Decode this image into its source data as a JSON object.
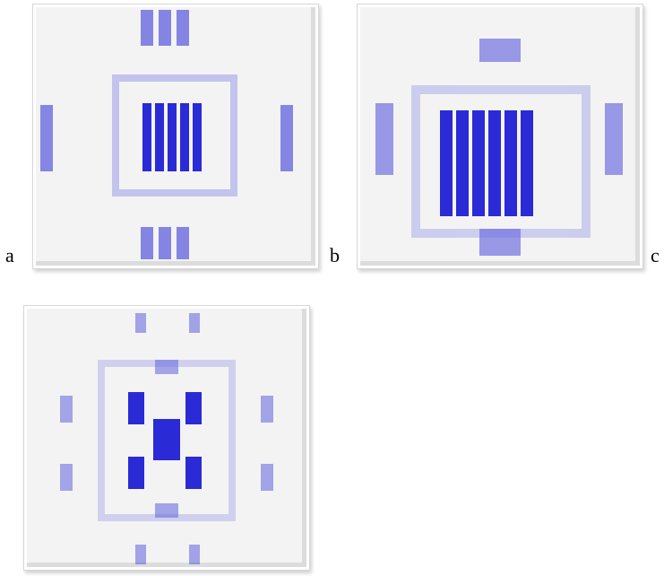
{
  "panels": [
    {
      "label": "a"
    },
    {
      "label": "b"
    },
    {
      "label": "c"
    }
  ],
  "colors": {
    "ink": "#2a2ad6",
    "panel_bg": "#f3f3f3"
  }
}
